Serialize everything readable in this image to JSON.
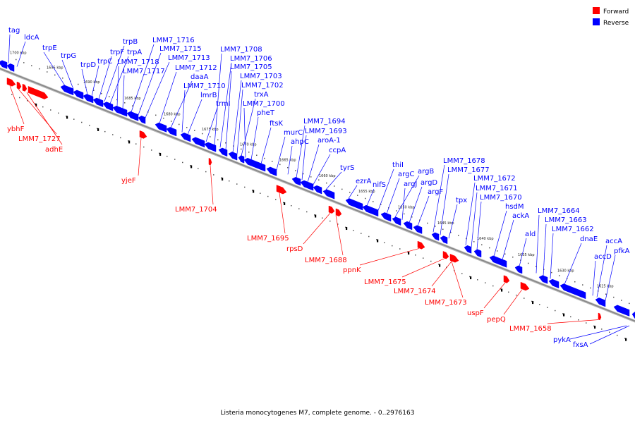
{
  "caption": "Listeria monocytogenes M7, complete genome. - 0..2976163",
  "legend": [
    {
      "label": "Forward",
      "color": "#ff0000"
    },
    {
      "label": "Reverse",
      "color": "#0000ff"
    }
  ],
  "colors": {
    "forward": "#ff0000",
    "reverse": "#0000ff",
    "backbone": "#888888"
  },
  "ticks": [
    "1700 kbp",
    "1695 kbp",
    "1690 kbp",
    "1685 kbp",
    "1680 kbp",
    "1675 kbp",
    "1670 kbp",
    "1665 kbp",
    "1660 kbp",
    "1655 kbp",
    "1650 kbp",
    "1645 kbp",
    "1640 kbp",
    "1635 kbp",
    "1630 kbp",
    "1625 kbp"
  ],
  "reverse_genes": [
    "tag",
    "ldcA",
    "trpE",
    "trpG",
    "trpD",
    "trpC",
    "trpF",
    "trpB",
    "trpA",
    "LMM7_1718",
    "LMM7_1717",
    "LMM7_1716",
    "LMM7_1715",
    "LMM7_1713",
    "LMM7_1712",
    "daaA",
    "LMM7_1710",
    "lmrB",
    "trmI",
    "LMM7_1708",
    "LMM7_1706",
    "LMM7_1705",
    "LMM7_1703",
    "LMM7_1702",
    "trxA",
    "LMM7_1700",
    "pheT",
    "ftsK",
    "murC",
    "ahpC",
    "LMM7_1694",
    "LMM7_1693",
    "aroA-1",
    "ccpA",
    "tyrS",
    "ezrA",
    "nifS",
    "thiI",
    "argC",
    "argJ",
    "argB",
    "argD",
    "argF",
    "LMM7_1678",
    "LMM7_1677",
    "tpx",
    "LMM7_1672",
    "LMM7_1671",
    "LMM7_1670",
    "hsdM",
    "ackA",
    "ald",
    "LMM7_1664",
    "LMM7_1663",
    "LMM7_1662",
    "dnaE",
    "accA",
    "accD",
    "pfkA",
    "pykA",
    "fxsA"
  ],
  "forward_genes": [
    "ybhF",
    "LMM7_1727",
    "adhE",
    "yjeF",
    "LMM7_1704",
    "LMM7_1695",
    "rpsD",
    "LMM7_1688",
    "ppnK",
    "LMM7_1675",
    "LMM7_1674",
    "LMM7_1673",
    "uspF",
    "pepQ",
    "LMM7_1658"
  ]
}
